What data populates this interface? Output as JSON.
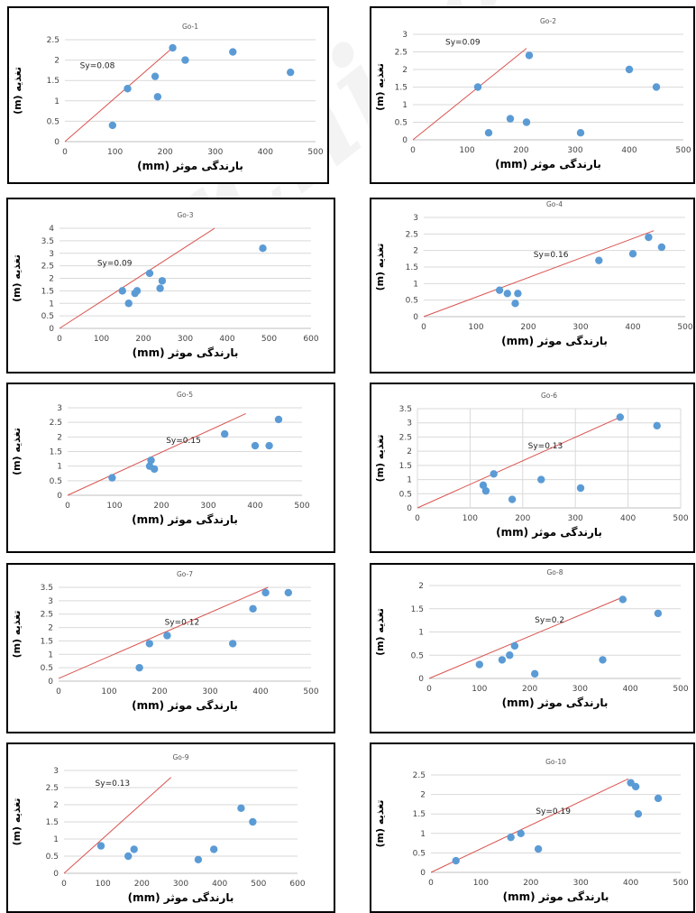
{
  "colors": {
    "point": "#5b9bd5",
    "line": "#d9534f",
    "grid": "#d9d9d9",
    "axis": "#bfbfbf"
  },
  "chart_data": [
    {
      "type": "scatter",
      "title": "Go-1",
      "annotation": "Sy=0.08",
      "xlabel": "بارندگی موثر (mm)",
      "ylabel": "تغذیه (m)",
      "xlim": [
        0,
        500
      ],
      "ylim": [
        0,
        2.5
      ],
      "xticks": [
        0,
        100,
        200,
        300,
        400,
        500
      ],
      "yticks": [
        0,
        0.5,
        1,
        1.5,
        2,
        2.5
      ],
      "points": [
        [
          95,
          0.4
        ],
        [
          125,
          1.3
        ],
        [
          180,
          1.6
        ],
        [
          185,
          1.1
        ],
        [
          215,
          2.3
        ],
        [
          240,
          2.0
        ],
        [
          335,
          2.2
        ],
        [
          450,
          1.7
        ]
      ],
      "line": [
        [
          0,
          0
        ],
        [
          210,
          2.25
        ]
      ]
    },
    {
      "type": "scatter",
      "title": "Go-2",
      "annotation": "Sy=0.09",
      "xlabel": "بارندگی موثر (mm)",
      "ylabel": "تغذیه (m)",
      "xlim": [
        0,
        500
      ],
      "ylim": [
        0,
        3
      ],
      "xticks": [
        0,
        100,
        200,
        300,
        400,
        500
      ],
      "yticks": [
        0,
        0.5,
        1,
        1.5,
        2,
        2.5,
        3
      ],
      "points": [
        [
          120,
          1.5
        ],
        [
          140,
          0.2
        ],
        [
          180,
          0.6
        ],
        [
          210,
          0.5
        ],
        [
          215,
          2.4
        ],
        [
          310,
          0.2
        ],
        [
          400,
          2.0
        ],
        [
          450,
          1.5
        ]
      ],
      "line": [
        [
          0,
          0
        ],
        [
          210,
          2.6
        ]
      ]
    },
    {
      "type": "scatter",
      "title": "Go-3",
      "annotation": "Sy=0.09",
      "xlabel": "بارندگی موثر (mm)",
      "ylabel": "تغذیه (m)",
      "xlim": [
        0,
        600
      ],
      "ylim": [
        0,
        4
      ],
      "xticks": [
        0,
        100,
        200,
        300,
        400,
        500,
        600
      ],
      "yticks": [
        0,
        0.5,
        1,
        1.5,
        2,
        2.5,
        3,
        3.5,
        4
      ],
      "points": [
        [
          150,
          1.5
        ],
        [
          165,
          1.0
        ],
        [
          180,
          1.4
        ],
        [
          185,
          1.5
        ],
        [
          215,
          2.2
        ],
        [
          240,
          1.6
        ],
        [
          245,
          1.9
        ],
        [
          485,
          3.2
        ]
      ],
      "line": [
        [
          0,
          0
        ],
        [
          370,
          4.0
        ]
      ]
    },
    {
      "type": "scatter",
      "title": "Go-4",
      "annotation": "Sy=0.16",
      "xlabel": "بارندگی موثر (mm)",
      "ylabel": "تغذیه (m)",
      "xlim": [
        0,
        500
      ],
      "ylim": [
        0,
        3
      ],
      "xticks": [
        0,
        100,
        200,
        300,
        400,
        500
      ],
      "yticks": [
        0,
        0.5,
        1,
        1.5,
        2,
        2.5,
        3
      ],
      "points": [
        [
          145,
          0.8
        ],
        [
          160,
          0.7
        ],
        [
          175,
          0.4
        ],
        [
          180,
          0.7
        ],
        [
          335,
          1.7
        ],
        [
          400,
          1.9
        ],
        [
          430,
          2.4
        ],
        [
          455,
          2.1
        ]
      ],
      "line": [
        [
          0,
          0
        ],
        [
          440,
          2.6
        ]
      ]
    },
    {
      "type": "scatter",
      "title": "Go-5",
      "annotation": "Sy=0.15",
      "xlabel": "بارندگی موثر (mm)",
      "ylabel": "تغذیه (m)",
      "xlim": [
        0,
        500
      ],
      "ylim": [
        0,
        3
      ],
      "xticks": [
        0,
        100,
        200,
        300,
        400,
        500
      ],
      "yticks": [
        0,
        0.5,
        1,
        1.5,
        2,
        2.5,
        3
      ],
      "points": [
        [
          95,
          0.6
        ],
        [
          175,
          1.0
        ],
        [
          178,
          1.2
        ],
        [
          185,
          0.9
        ],
        [
          335,
          2.1
        ],
        [
          400,
          1.7
        ],
        [
          430,
          1.7
        ],
        [
          450,
          2.6
        ]
      ],
      "line": [
        [
          0,
          0
        ],
        [
          380,
          2.8
        ]
      ]
    },
    {
      "type": "scatter",
      "title": "Go-6",
      "annotation": "Sy=0.13",
      "xlabel": "بارندگی موثر (mm)",
      "ylabel": "تغذیه (m)",
      "xlim": [
        0,
        500
      ],
      "ylim": [
        0,
        3.5
      ],
      "xticks": [
        0,
        100,
        200,
        300,
        400,
        500
      ],
      "yticks": [
        0,
        0.5,
        1,
        1.5,
        2,
        2.5,
        3,
        3.5
      ],
      "points": [
        [
          125,
          0.8
        ],
        [
          130,
          0.6
        ],
        [
          145,
          1.2
        ],
        [
          180,
          0.3
        ],
        [
          235,
          1.0
        ],
        [
          310,
          0.7
        ],
        [
          385,
          3.2
        ],
        [
          455,
          2.9
        ]
      ],
      "line": [
        [
          0,
          0
        ],
        [
          385,
          3.2
        ]
      ]
    },
    {
      "type": "scatter",
      "title": "Go-7",
      "annotation": "Sy=0.12",
      "xlabel": "بارندگی موثر (mm)",
      "ylabel": "تغذیه (m)",
      "xlim": [
        0,
        500
      ],
      "ylim": [
        0,
        3.5
      ],
      "xticks": [
        0,
        100,
        200,
        300,
        400,
        500
      ],
      "yticks": [
        0,
        0.5,
        1,
        1.5,
        2,
        2.5,
        3,
        3.5
      ],
      "points": [
        [
          160,
          0.5
        ],
        [
          180,
          1.4
        ],
        [
          215,
          1.7
        ],
        [
          345,
          1.4
        ],
        [
          385,
          2.7
        ],
        [
          410,
          3.3
        ],
        [
          455,
          3.3
        ]
      ],
      "line": [
        [
          0,
          0.1
        ],
        [
          415,
          3.5
        ]
      ]
    },
    {
      "type": "scatter",
      "title": "Go-8",
      "annotation": "Sy=0.2",
      "xlabel": "بارندگی موثر (mm)",
      "ylabel": "تغذیه (m)",
      "xlim": [
        0,
        500
      ],
      "ylim": [
        0,
        2
      ],
      "xticks": [
        0,
        100,
        200,
        300,
        400,
        500
      ],
      "yticks": [
        0,
        0.5,
        1,
        1.5,
        2
      ],
      "points": [
        [
          100,
          0.3
        ],
        [
          145,
          0.4
        ],
        [
          160,
          0.5
        ],
        [
          170,
          0.7
        ],
        [
          210,
          0.1
        ],
        [
          345,
          0.4
        ],
        [
          385,
          1.7
        ],
        [
          455,
          1.4
        ]
      ],
      "line": [
        [
          0,
          0
        ],
        [
          385,
          1.75
        ]
      ]
    },
    {
      "type": "scatter",
      "title": "Go-9",
      "annotation": "Sy=0.13",
      "xlabel": "بارندگی موثر (mm)",
      "ylabel": "تغذیه (m)",
      "xlim": [
        0,
        600
      ],
      "ylim": [
        0,
        3
      ],
      "xticks": [
        0,
        100,
        200,
        300,
        400,
        500,
        600
      ],
      "yticks": [
        0,
        0.5,
        1,
        1.5,
        2,
        2.5,
        3
      ],
      "points": [
        [
          95,
          0.8
        ],
        [
          165,
          0.5
        ],
        [
          180,
          0.7
        ],
        [
          345,
          0.4
        ],
        [
          385,
          0.7
        ],
        [
          455,
          1.9
        ],
        [
          485,
          1.5
        ]
      ],
      "line": [
        [
          0,
          0
        ],
        [
          275,
          2.8
        ]
      ]
    },
    {
      "type": "scatter",
      "title": "Go-10",
      "annotation": "Sy=0.19",
      "xlabel": "بارندگی موثر (mm)",
      "ylabel": "تغذیه (m)",
      "xlim": [
        0,
        500
      ],
      "ylim": [
        0,
        2.5
      ],
      "xticks": [
        0,
        100,
        200,
        300,
        400,
        500
      ],
      "yticks": [
        0,
        0.5,
        1,
        1.5,
        2,
        2.5
      ],
      "points": [
        [
          50,
          0.3
        ],
        [
          160,
          0.9
        ],
        [
          180,
          1.0
        ],
        [
          215,
          0.6
        ],
        [
          400,
          2.3
        ],
        [
          410,
          2.2
        ],
        [
          415,
          1.5
        ],
        [
          455,
          1.9
        ]
      ],
      "line": [
        [
          0,
          0
        ],
        [
          395,
          2.4
        ]
      ]
    }
  ]
}
